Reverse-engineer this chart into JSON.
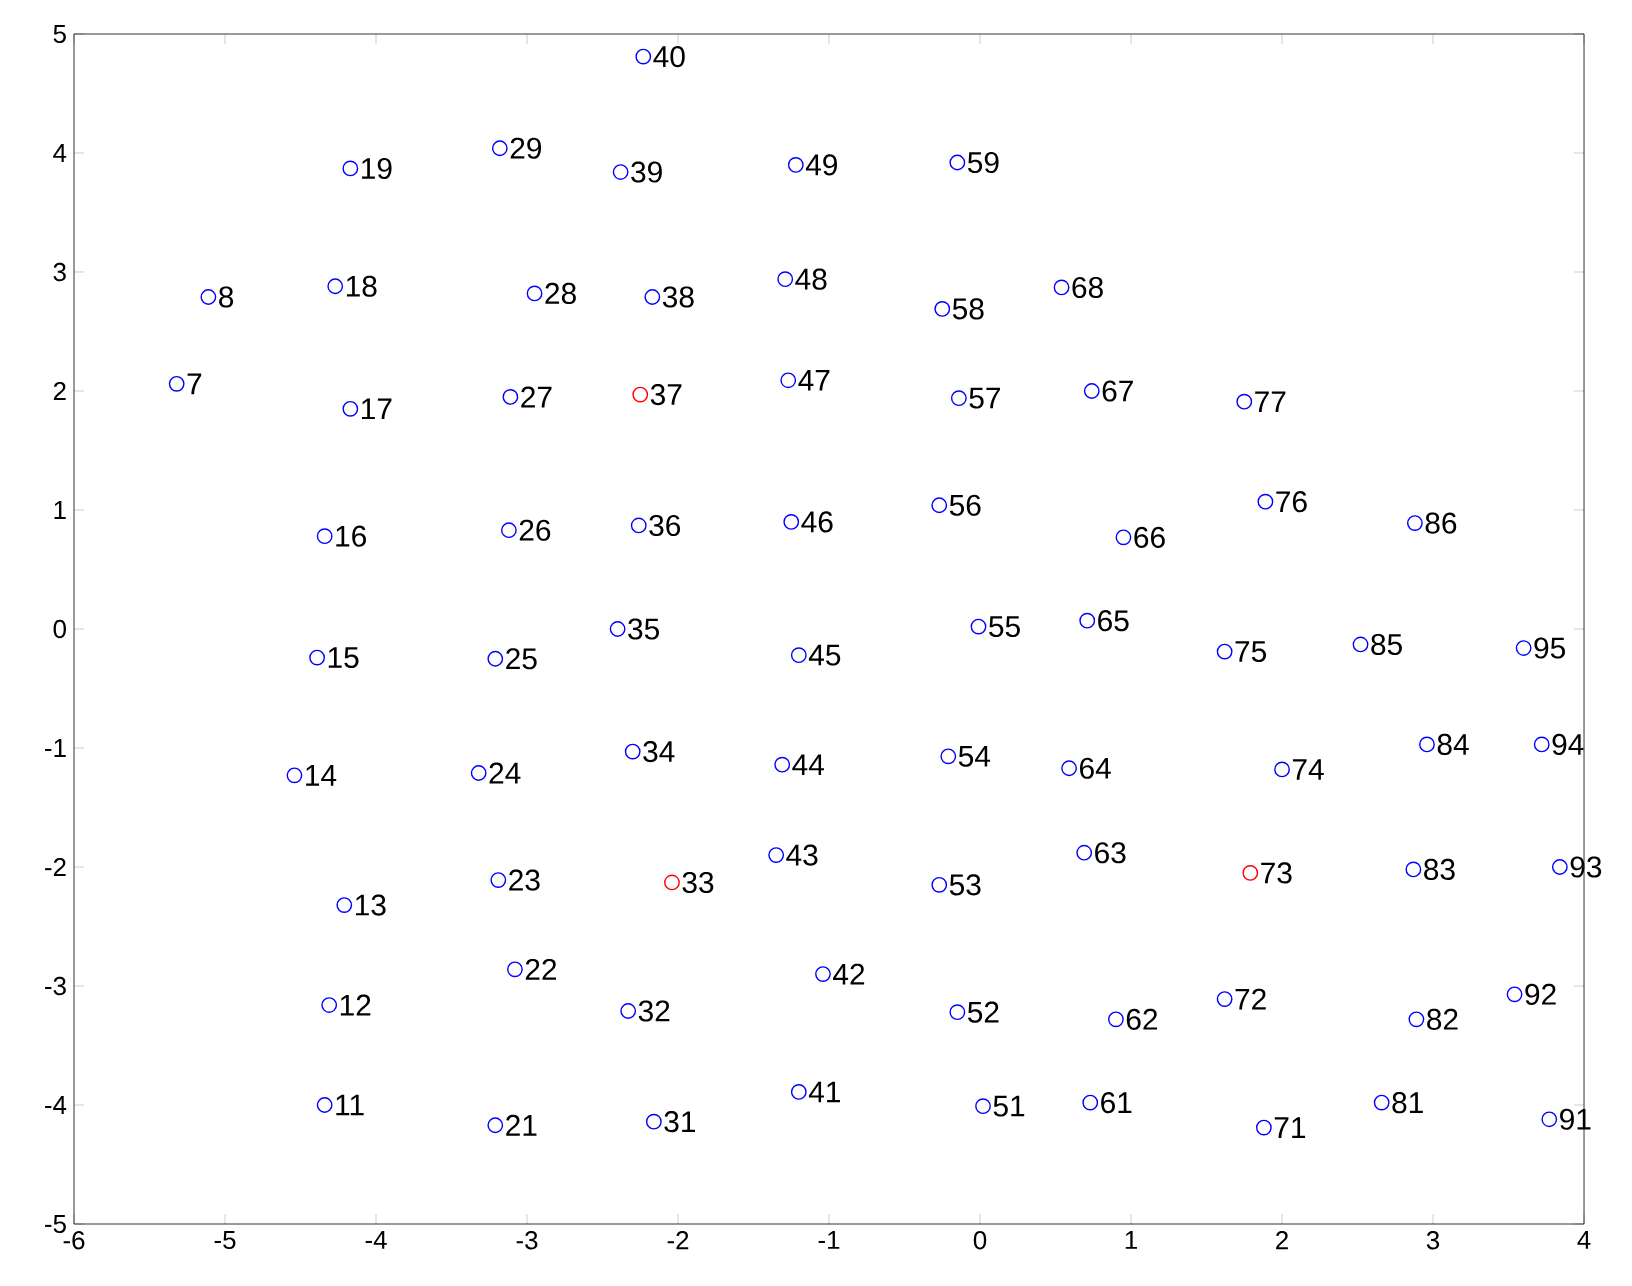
{
  "chart_data": {
    "type": "scatter",
    "marker": "circle",
    "xlim": [
      -6,
      4
    ],
    "ylim": [
      -5,
      5
    ],
    "xticks": [
      -6,
      -5,
      -4,
      -3,
      -2,
      -1,
      0,
      1,
      2,
      3,
      4
    ],
    "yticks": [
      -5,
      -4,
      -3,
      -2,
      -1,
      0,
      1,
      2,
      3,
      4,
      5
    ],
    "x": [
      -5.32,
      -5.11,
      -4.34,
      -4.31,
      -4.21,
      -4.54,
      -4.39,
      -4.34,
      -4.17,
      -4.27,
      -4.17,
      -3.21,
      -3.08,
      -3.19,
      -3.32,
      -3.21,
      -3.12,
      -3.11,
      -2.95,
      -3.18,
      -2.16,
      -2.33,
      -2.04,
      -2.3,
      -2.4,
      -2.26,
      -2.25,
      -2.17,
      -2.38,
      -2.23,
      -1.2,
      -1.04,
      -1.35,
      -1.31,
      -1.2,
      -1.25,
      -1.27,
      -1.29,
      -1.22,
      0.02,
      -0.15,
      -0.27,
      -0.21,
      -0.01,
      -0.27,
      -0.14,
      -0.25,
      -0.15,
      0.73,
      0.9,
      0.69,
      0.59,
      0.71,
      0.95,
      0.74,
      0.54,
      1.88,
      1.62,
      1.79,
      2.0,
      1.62,
      1.89,
      1.75,
      2.66,
      2.89,
      2.87,
      2.96,
      2.52,
      2.88,
      3.77,
      3.54,
      3.84,
      3.72,
      3.6
    ],
    "values": [
      2.06,
      2.79,
      -4.0,
      -3.16,
      -2.32,
      -1.23,
      -0.24,
      0.78,
      1.85,
      2.88,
      3.87,
      -4.17,
      -2.86,
      -2.11,
      -1.21,
      -0.25,
      0.83,
      1.95,
      2.82,
      4.04,
      -4.14,
      -3.21,
      -2.13,
      -1.03,
      0.0,
      0.87,
      1.97,
      2.79,
      3.84,
      4.81,
      -3.89,
      -2.9,
      -1.9,
      -1.14,
      -0.22,
      0.9,
      2.09,
      2.94,
      3.9,
      -4.01,
      -3.22,
      -2.15,
      -1.07,
      0.02,
      1.04,
      1.94,
      2.69,
      3.92,
      -3.98,
      -3.28,
      -1.88,
      -1.17,
      0.07,
      0.77,
      2.0,
      2.87,
      -4.19,
      -3.11,
      -2.05,
      -1.18,
      -0.19,
      1.07,
      1.91,
      -3.98,
      -3.28,
      -2.02,
      -0.97,
      -0.13,
      0.89,
      -4.12,
      -3.07,
      -2.0,
      -0.97,
      -0.16
    ],
    "colors": [
      "#0000ff",
      "#0000ff",
      "#0000ff",
      "#0000ff",
      "#0000ff",
      "#0000ff",
      "#0000ff",
      "#0000ff",
      "#0000ff",
      "#0000ff",
      "#0000ff",
      "#0000ff",
      "#0000ff",
      "#0000ff",
      "#0000ff",
      "#0000ff",
      "#0000ff",
      "#0000ff",
      "#0000ff",
      "#0000ff",
      "#0000ff",
      "#0000ff",
      "#ff0000",
      "#0000ff",
      "#0000ff",
      "#0000ff",
      "#ff0000",
      "#0000ff",
      "#0000ff",
      "#0000ff",
      "#0000ff",
      "#0000ff",
      "#0000ff",
      "#0000ff",
      "#0000ff",
      "#0000ff",
      "#0000ff",
      "#0000ff",
      "#0000ff",
      "#0000ff",
      "#0000ff",
      "#0000ff",
      "#0000ff",
      "#0000ff",
      "#0000ff",
      "#0000ff",
      "#0000ff",
      "#0000ff",
      "#0000ff",
      "#0000ff",
      "#0000ff",
      "#0000ff",
      "#0000ff",
      "#0000ff",
      "#0000ff",
      "#0000ff",
      "#0000ff",
      "#0000ff",
      "#ff0000",
      "#0000ff",
      "#0000ff",
      "#0000ff",
      "#0000ff",
      "#0000ff",
      "#0000ff",
      "#0000ff",
      "#0000ff",
      "#0000ff",
      "#0000ff",
      "#0000ff",
      "#0000ff",
      "#0000ff",
      "#0000ff",
      "#0000ff"
    ],
    "annotations": [
      {
        "text": "7",
        "x": -5.32,
        "y": 2.06
      },
      {
        "text": "8",
        "x": -5.11,
        "y": 2.79
      },
      {
        "text": "11",
        "x": -4.34,
        "y": -4.0
      },
      {
        "text": "12",
        "x": -4.31,
        "y": -3.16
      },
      {
        "text": "13",
        "x": -4.21,
        "y": -2.32
      },
      {
        "text": "14",
        "x": -4.54,
        "y": -1.23
      },
      {
        "text": "15",
        "x": -4.39,
        "y": -0.24
      },
      {
        "text": "16",
        "x": -4.34,
        "y": 0.78
      },
      {
        "text": "17",
        "x": -4.17,
        "y": 1.85
      },
      {
        "text": "18",
        "x": -4.27,
        "y": 2.88
      },
      {
        "text": "19",
        "x": -4.17,
        "y": 3.87
      },
      {
        "text": "21",
        "x": -3.21,
        "y": -4.17
      },
      {
        "text": "22",
        "x": -3.08,
        "y": -2.86
      },
      {
        "text": "23",
        "x": -3.19,
        "y": -2.11
      },
      {
        "text": "24",
        "x": -3.32,
        "y": -1.21
      },
      {
        "text": "25",
        "x": -3.21,
        "y": -0.25
      },
      {
        "text": "26",
        "x": -3.12,
        "y": 0.83
      },
      {
        "text": "27",
        "x": -3.11,
        "y": 1.95
      },
      {
        "text": "28",
        "x": -2.95,
        "y": 2.82
      },
      {
        "text": "29",
        "x": -3.18,
        "y": 4.04
      },
      {
        "text": "31",
        "x": -2.16,
        "y": -4.14
      },
      {
        "text": "32",
        "x": -2.33,
        "y": -3.21
      },
      {
        "text": "33",
        "x": -2.04,
        "y": -2.13
      },
      {
        "text": "34",
        "x": -2.3,
        "y": -1.03
      },
      {
        "text": "35",
        "x": -2.4,
        "y": 0.0
      },
      {
        "text": "36",
        "x": -2.26,
        "y": 0.87
      },
      {
        "text": "37",
        "x": -2.25,
        "y": 1.97
      },
      {
        "text": "38",
        "x": -2.17,
        "y": 2.79
      },
      {
        "text": "39",
        "x": -2.38,
        "y": 3.84
      },
      {
        "text": "40",
        "x": -2.23,
        "y": 4.81
      },
      {
        "text": "41",
        "x": -1.2,
        "y": -3.89
      },
      {
        "text": "42",
        "x": -1.04,
        "y": -2.9
      },
      {
        "text": "43",
        "x": -1.35,
        "y": -1.9
      },
      {
        "text": "44",
        "x": -1.31,
        "y": -1.14
      },
      {
        "text": "45",
        "x": -1.2,
        "y": -0.22
      },
      {
        "text": "46",
        "x": -1.25,
        "y": 0.9
      },
      {
        "text": "47",
        "x": -1.27,
        "y": 2.09
      },
      {
        "text": "48",
        "x": -1.29,
        "y": 2.94
      },
      {
        "text": "49",
        "x": -1.22,
        "y": 3.9
      },
      {
        "text": "51",
        "x": 0.02,
        "y": -4.01
      },
      {
        "text": "52",
        "x": -0.15,
        "y": -3.22
      },
      {
        "text": "53",
        "x": -0.27,
        "y": -2.15
      },
      {
        "text": "54",
        "x": -0.21,
        "y": -1.07
      },
      {
        "text": "55",
        "x": -0.01,
        "y": 0.02
      },
      {
        "text": "56",
        "x": -0.27,
        "y": 1.04
      },
      {
        "text": "57",
        "x": -0.14,
        "y": 1.94
      },
      {
        "text": "58",
        "x": -0.25,
        "y": 2.69
      },
      {
        "text": "59",
        "x": -0.15,
        "y": 3.92
      },
      {
        "text": "61",
        "x": 0.73,
        "y": -3.98
      },
      {
        "text": "62",
        "x": 0.9,
        "y": -3.28
      },
      {
        "text": "63",
        "x": 0.69,
        "y": -1.88
      },
      {
        "text": "64",
        "x": 0.59,
        "y": -1.17
      },
      {
        "text": "65",
        "x": 0.71,
        "y": 0.07
      },
      {
        "text": "66",
        "x": 0.95,
        "y": 0.77
      },
      {
        "text": "67",
        "x": 0.74,
        "y": 2.0
      },
      {
        "text": "68",
        "x": 0.54,
        "y": 2.87
      },
      {
        "text": "71",
        "x": 1.88,
        "y": -4.19
      },
      {
        "text": "72",
        "x": 1.62,
        "y": -3.11
      },
      {
        "text": "73",
        "x": 1.79,
        "y": -2.05
      },
      {
        "text": "74",
        "x": 2.0,
        "y": -1.18
      },
      {
        "text": "75",
        "x": 1.62,
        "y": -0.19
      },
      {
        "text": "76",
        "x": 1.89,
        "y": 1.07
      },
      {
        "text": "77",
        "x": 1.75,
        "y": 1.91
      },
      {
        "text": "81",
        "x": 2.66,
        "y": -3.98
      },
      {
        "text": "82",
        "x": 2.89,
        "y": -3.28
      },
      {
        "text": "83",
        "x": 2.87,
        "y": -2.02
      },
      {
        "text": "84",
        "x": 2.96,
        "y": -0.97
      },
      {
        "text": "85",
        "x": 2.52,
        "y": -0.13
      },
      {
        "text": "86",
        "x": 2.88,
        "y": 0.89
      },
      {
        "text": "91",
        "x": 3.77,
        "y": -4.12
      },
      {
        "text": "92",
        "x": 3.54,
        "y": -3.07
      },
      {
        "text": "93",
        "x": 3.84,
        "y": -2.0
      },
      {
        "text": "94",
        "x": 3.72,
        "y": -0.97
      },
      {
        "text": "95",
        "x": 3.6,
        "y": -0.16
      }
    ]
  }
}
